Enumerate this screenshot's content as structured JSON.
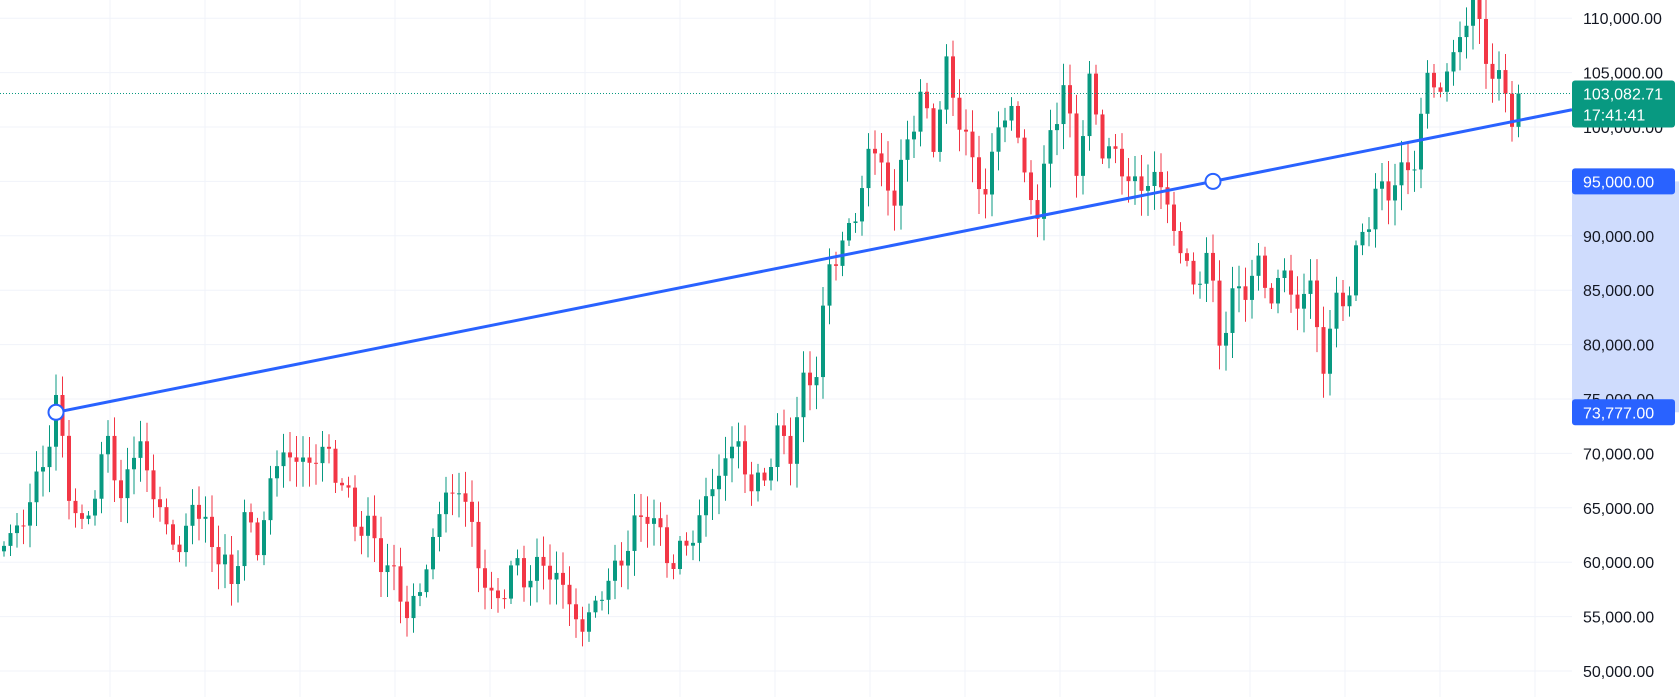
{
  "chart_data": {
    "type": "candlestick",
    "ylim": [
      49000,
      113000
    ],
    "y_ticks": [
      "50,000.00",
      "55,000.00",
      "60,000.00",
      "65,000.00",
      "70,000.00",
      "75,000.00",
      "80,000.00",
      "85,000.00",
      "90,000.00",
      "95,000.00",
      "100,000.00",
      "105,000.00",
      "110,000.00"
    ],
    "y_tick_values": [
      50000,
      55000,
      60000,
      65000,
      70000,
      75000,
      80000,
      85000,
      90000,
      95000,
      100000,
      105000,
      110000
    ],
    "grid": true,
    "colors": {
      "up": "#089981",
      "down": "#f23645",
      "trendline": "#2962ff",
      "last_price_bg": "#089981",
      "selection_band": "#cfdcfd",
      "grid": "#f0f3fa"
    },
    "price_path": [
      [
        0,
        61500
      ],
      [
        3,
        64000
      ],
      [
        6,
        69000
      ],
      [
        8,
        74500
      ],
      [
        10,
        67000
      ],
      [
        12,
        62500
      ],
      [
        14,
        67000
      ],
      [
        16,
        71000
      ],
      [
        18,
        66000
      ],
      [
        21,
        71500
      ],
      [
        23,
        65500
      ],
      [
        25,
        64000
      ],
      [
        27,
        60000
      ],
      [
        29,
        66500
      ],
      [
        30,
        63500
      ],
      [
        32,
        62500
      ],
      [
        33,
        60500
      ],
      [
        35,
        58000
      ],
      [
        37,
        64000
      ],
      [
        39,
        61500
      ],
      [
        41,
        67000
      ],
      [
        43,
        70500
      ],
      [
        45,
        69000
      ],
      [
        47,
        69500
      ],
      [
        50,
        70000
      ],
      [
        52,
        67000
      ],
      [
        54,
        64000
      ],
      [
        56,
        63000
      ],
      [
        58,
        60500
      ],
      [
        60,
        58500
      ],
      [
        62,
        55500
      ],
      [
        64,
        57000
      ],
      [
        66,
        62500
      ],
      [
        68,
        66000
      ],
      [
        70,
        67000
      ],
      [
        72,
        63000
      ],
      [
        74,
        58000
      ],
      [
        75,
        56000
      ],
      [
        77,
        58000
      ],
      [
        79,
        59500
      ],
      [
        81,
        58500
      ],
      [
        83,
        60000
      ],
      [
        85,
        58500
      ],
      [
        87,
        56500
      ],
      [
        89,
        53500
      ],
      [
        91,
        56500
      ],
      [
        93,
        58000
      ],
      [
        95,
        60500
      ],
      [
        97,
        63000
      ],
      [
        99,
        65000
      ],
      [
        101,
        62000
      ],
      [
        103,
        60000
      ],
      [
        105,
        61500
      ],
      [
        107,
        64000
      ],
      [
        109,
        67000
      ],
      [
        111,
        69500
      ],
      [
        113,
        71000
      ],
      [
        115,
        66500
      ],
      [
        117,
        68000
      ],
      [
        119,
        71500
      ],
      [
        121,
        70500
      ],
      [
        123,
        76000
      ],
      [
        125,
        78000
      ],
      [
        127,
        87000
      ],
      [
        129,
        89500
      ],
      [
        131,
        91500
      ],
      [
        133,
        98000
      ],
      [
        135,
        96500
      ],
      [
        137,
        93000
      ],
      [
        139,
        99000
      ],
      [
        141,
        102500
      ],
      [
        143,
        99000
      ],
      [
        145,
        105000
      ],
      [
        147,
        101000
      ],
      [
        149,
        96500
      ],
      [
        151,
        94000
      ],
      [
        153,
        100000
      ],
      [
        155,
        102000
      ],
      [
        157,
        95500
      ],
      [
        159,
        92000
      ],
      [
        161,
        99500
      ],
      [
        163,
        103500
      ],
      [
        165,
        96500
      ],
      [
        167,
        103500
      ],
      [
        169,
        98500
      ],
      [
        171,
        97000
      ],
      [
        173,
        95500
      ],
      [
        175,
        94000
      ],
      [
        177,
        96000
      ],
      [
        179,
        92500
      ],
      [
        181,
        89000
      ],
      [
        183,
        85000
      ],
      [
        185,
        88500
      ],
      [
        187,
        80500
      ],
      [
        189,
        84000
      ],
      [
        191,
        85500
      ],
      [
        193,
        87000
      ],
      [
        195,
        84500
      ],
      [
        197,
        86500
      ],
      [
        199,
        83500
      ],
      [
        201,
        85500
      ],
      [
        203,
        78000
      ],
      [
        205,
        84000
      ],
      [
        207,
        85000
      ],
      [
        209,
        90500
      ],
      [
        211,
        93500
      ],
      [
        213,
        94500
      ],
      [
        215,
        95500
      ],
      [
        217,
        97000
      ],
      [
        219,
        104500
      ],
      [
        221,
        103500
      ],
      [
        223,
        106500
      ],
      [
        225,
        110000
      ],
      [
        226,
        111500
      ],
      [
        228,
        106500
      ],
      [
        230,
        104000
      ],
      [
        232,
        101500
      ],
      [
        233,
        103082
      ]
    ],
    "trendline": {
      "points": [
        [
          8,
          73777
        ],
        [
          186,
          95000
        ]
      ],
      "extends_right": true
    },
    "last_price": {
      "value": 103082.71,
      "label": "103,082.71",
      "countdown": "17:41:41"
    },
    "price_tags": [
      {
        "label": "95,000.00",
        "value": 95000
      },
      {
        "label": "73,777.00",
        "value": 73777
      }
    ]
  }
}
